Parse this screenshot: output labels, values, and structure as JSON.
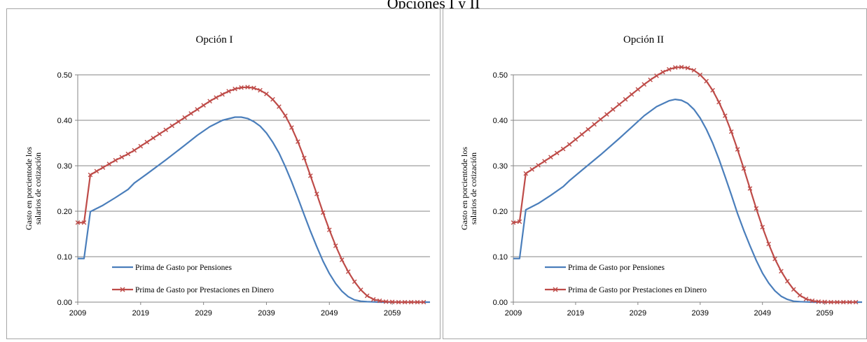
{
  "figure": {
    "title": "Opciones I y II"
  },
  "legend_labels": {
    "pensiones": "Prima de Gasto por Pensiones",
    "dinero": "Prima de Gasto por Prestaciones en Dinero"
  },
  "colors": {
    "pensiones": "#4a7ebb",
    "dinero": "#be4b48",
    "grid": "#868686",
    "axis": "#868686"
  },
  "chart_data": [
    {
      "type": "line",
      "title": "Opción I",
      "xlabel": "",
      "ylabel": "Gasto en porcientode los salarios de cotización",
      "xlim": [
        2009,
        2065
      ],
      "ylim": [
        0,
        0.5
      ],
      "x_ticks": [
        "2009",
        "2019",
        "2029",
        "2039",
        "2049",
        "2059"
      ],
      "y_ticks": [
        "0.00",
        "0.10",
        "0.20",
        "0.30",
        "0.40",
        "0.50"
      ],
      "grid": true,
      "legend_position": "lower-left inside",
      "series": [
        {
          "name": "Prima de Gasto por Pensiones",
          "x": [
            2009,
            2010,
            2011,
            2013,
            2015,
            2017,
            2018,
            2020,
            2023,
            2026,
            2028,
            2030,
            2032,
            2034,
            2035,
            2036,
            2037,
            2038,
            2039,
            2040,
            2041,
            2042,
            2043,
            2044,
            2045,
            2046,
            2047,
            2048,
            2049,
            2050,
            2051,
            2052,
            2053,
            2054,
            2055,
            2056,
            2057,
            2060,
            2065
          ],
          "values": [
            0.096,
            0.096,
            0.199,
            0.213,
            0.23,
            0.248,
            0.262,
            0.282,
            0.313,
            0.345,
            0.367,
            0.386,
            0.4,
            0.407,
            0.407,
            0.404,
            0.397,
            0.387,
            0.372,
            0.352,
            0.328,
            0.298,
            0.265,
            0.229,
            0.192,
            0.156,
            0.122,
            0.09,
            0.063,
            0.041,
            0.024,
            0.012,
            0.005,
            0.002,
            0.001,
            0.0005,
            0,
            0,
            0
          ]
        },
        {
          "name": "Prima de Gasto por Prestaciones en Dinero",
          "x": [
            2009,
            2010,
            2011,
            2012,
            2013,
            2014,
            2015,
            2016,
            2017,
            2018,
            2019,
            2020,
            2021,
            2022,
            2023,
            2024,
            2025,
            2026,
            2027,
            2028,
            2029,
            2030,
            2031,
            2032,
            2033,
            2034,
            2035,
            2036,
            2037,
            2038,
            2039,
            2040,
            2041,
            2042,
            2043,
            2044,
            2045,
            2046,
            2047,
            2048,
            2049,
            2050,
            2051,
            2052,
            2053,
            2054,
            2055,
            2056,
            2057,
            2058,
            2059,
            2060,
            2061,
            2062,
            2063,
            2064
          ],
          "values": [
            0.175,
            0.175,
            0.28,
            0.288,
            0.296,
            0.304,
            0.312,
            0.319,
            0.326,
            0.334,
            0.343,
            0.352,
            0.361,
            0.37,
            0.379,
            0.388,
            0.397,
            0.406,
            0.415,
            0.424,
            0.433,
            0.442,
            0.45,
            0.457,
            0.464,
            0.469,
            0.472,
            0.473,
            0.471,
            0.466,
            0.458,
            0.446,
            0.43,
            0.41,
            0.384,
            0.353,
            0.317,
            0.278,
            0.238,
            0.197,
            0.159,
            0.124,
            0.093,
            0.067,
            0.045,
            0.027,
            0.014,
            0.006,
            0.003,
            0.001,
            0.0005,
            0,
            0,
            0,
            0,
            0
          ]
        }
      ]
    },
    {
      "type": "line",
      "title": "Opción II",
      "xlabel": "",
      "ylabel": "Gasto en porcientode los salarios de cotización",
      "xlim": [
        2009,
        2065
      ],
      "ylim": [
        0,
        0.5
      ],
      "x_ticks": [
        "2009",
        "2019",
        "2029",
        "2039",
        "2049",
        "2059"
      ],
      "y_ticks": [
        "0.00",
        "0.10",
        "0.20",
        "0.30",
        "0.40",
        "0.50"
      ],
      "grid": true,
      "legend_position": "lower-left inside",
      "series": [
        {
          "name": "Prima de Gasto por Pensiones",
          "x": [
            2009,
            2010,
            2011,
            2013,
            2015,
            2017,
            2018,
            2020,
            2023,
            2026,
            2028,
            2030,
            2032,
            2034,
            2035,
            2036,
            2037,
            2038,
            2039,
            2040,
            2041,
            2042,
            2043,
            2044,
            2045,
            2046,
            2047,
            2048,
            2049,
            2050,
            2051,
            2052,
            2053,
            2054,
            2055,
            2056,
            2057,
            2060,
            2065
          ],
          "values": [
            0.096,
            0.096,
            0.203,
            0.217,
            0.235,
            0.254,
            0.267,
            0.29,
            0.324,
            0.36,
            0.385,
            0.41,
            0.43,
            0.443,
            0.446,
            0.444,
            0.437,
            0.424,
            0.405,
            0.38,
            0.35,
            0.315,
            0.276,
            0.236,
            0.195,
            0.158,
            0.124,
            0.092,
            0.064,
            0.042,
            0.025,
            0.013,
            0.006,
            0.002,
            0.001,
            0.0005,
            0,
            0,
            0
          ]
        },
        {
          "name": "Prima de Gasto por Prestaciones en Dinero",
          "x": [
            2009,
            2010,
            2011,
            2012,
            2013,
            2014,
            2015,
            2016,
            2017,
            2018,
            2019,
            2020,
            2021,
            2022,
            2023,
            2024,
            2025,
            2026,
            2027,
            2028,
            2029,
            2030,
            2031,
            2032,
            2033,
            2034,
            2035,
            2036,
            2037,
            2038,
            2039,
            2040,
            2041,
            2042,
            2043,
            2044,
            2045,
            2046,
            2047,
            2048,
            2049,
            2050,
            2051,
            2052,
            2053,
            2054,
            2055,
            2056,
            2057,
            2058,
            2059,
            2060,
            2061,
            2062,
            2063,
            2064
          ],
          "values": [
            0.175,
            0.177,
            0.283,
            0.292,
            0.301,
            0.31,
            0.319,
            0.328,
            0.337,
            0.347,
            0.358,
            0.369,
            0.38,
            0.391,
            0.402,
            0.413,
            0.424,
            0.435,
            0.446,
            0.457,
            0.468,
            0.479,
            0.489,
            0.498,
            0.506,
            0.512,
            0.516,
            0.517,
            0.515,
            0.51,
            0.5,
            0.486,
            0.466,
            0.44,
            0.41,
            0.375,
            0.336,
            0.294,
            0.25,
            0.206,
            0.165,
            0.128,
            0.095,
            0.068,
            0.046,
            0.028,
            0.015,
            0.007,
            0.003,
            0.001,
            0.0005,
            0,
            0,
            0,
            0,
            0
          ]
        }
      ]
    }
  ]
}
